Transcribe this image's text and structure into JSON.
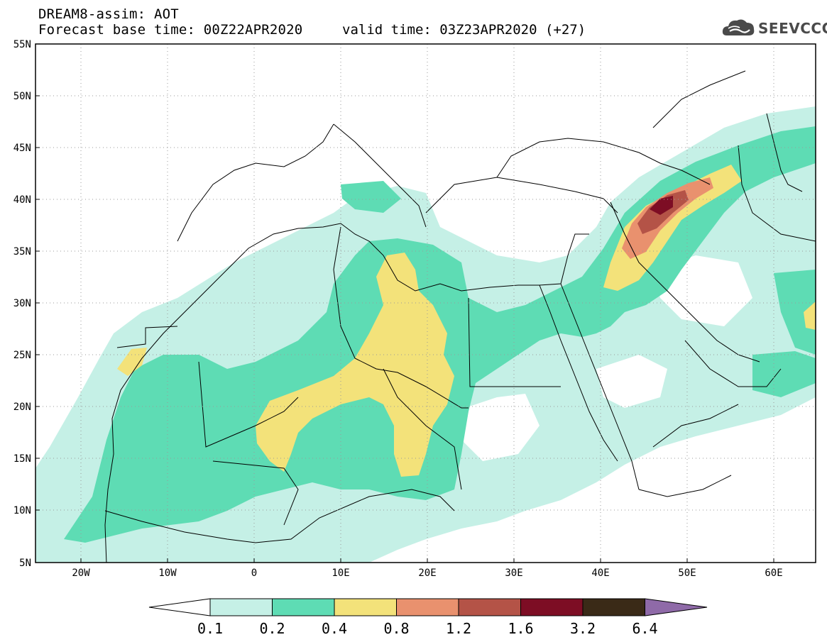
{
  "header": {
    "title": "DREAM8-assim: AOT",
    "base_time": "Forecast base time: 00Z22APR2020",
    "valid_time": "valid time: 03Z23APR2020 (+27)"
  },
  "logo": {
    "text": "SEEVCCC",
    "icon": "cloud-icon",
    "color": "#4a4a4a"
  },
  "map": {
    "lon_range": [
      -25,
      65
    ],
    "lat_range": [
      5,
      55
    ],
    "lat_ticks": [
      "55N",
      "50N",
      "45N",
      "40N",
      "35N",
      "30N",
      "25N",
      "20N",
      "15N",
      "10N",
      "5N"
    ],
    "lon_ticks": [
      "20W",
      "10W",
      "0",
      "10E",
      "20E",
      "30E",
      "40E",
      "50E",
      "60E"
    ],
    "grid": "dotted"
  },
  "colorbar": {
    "levels": [
      "0.1",
      "0.2",
      "0.4",
      "0.8",
      "1.2",
      "1.6",
      "3.2",
      "6.4"
    ],
    "colors": [
      "#c5f0e6",
      "#5edcb4",
      "#f3e27a",
      "#e9916e",
      "#b45347",
      "#7d0d24",
      "#3a2a17"
    ],
    "under_color": "#ffffff",
    "over_color": "#8f6aa8"
  }
}
